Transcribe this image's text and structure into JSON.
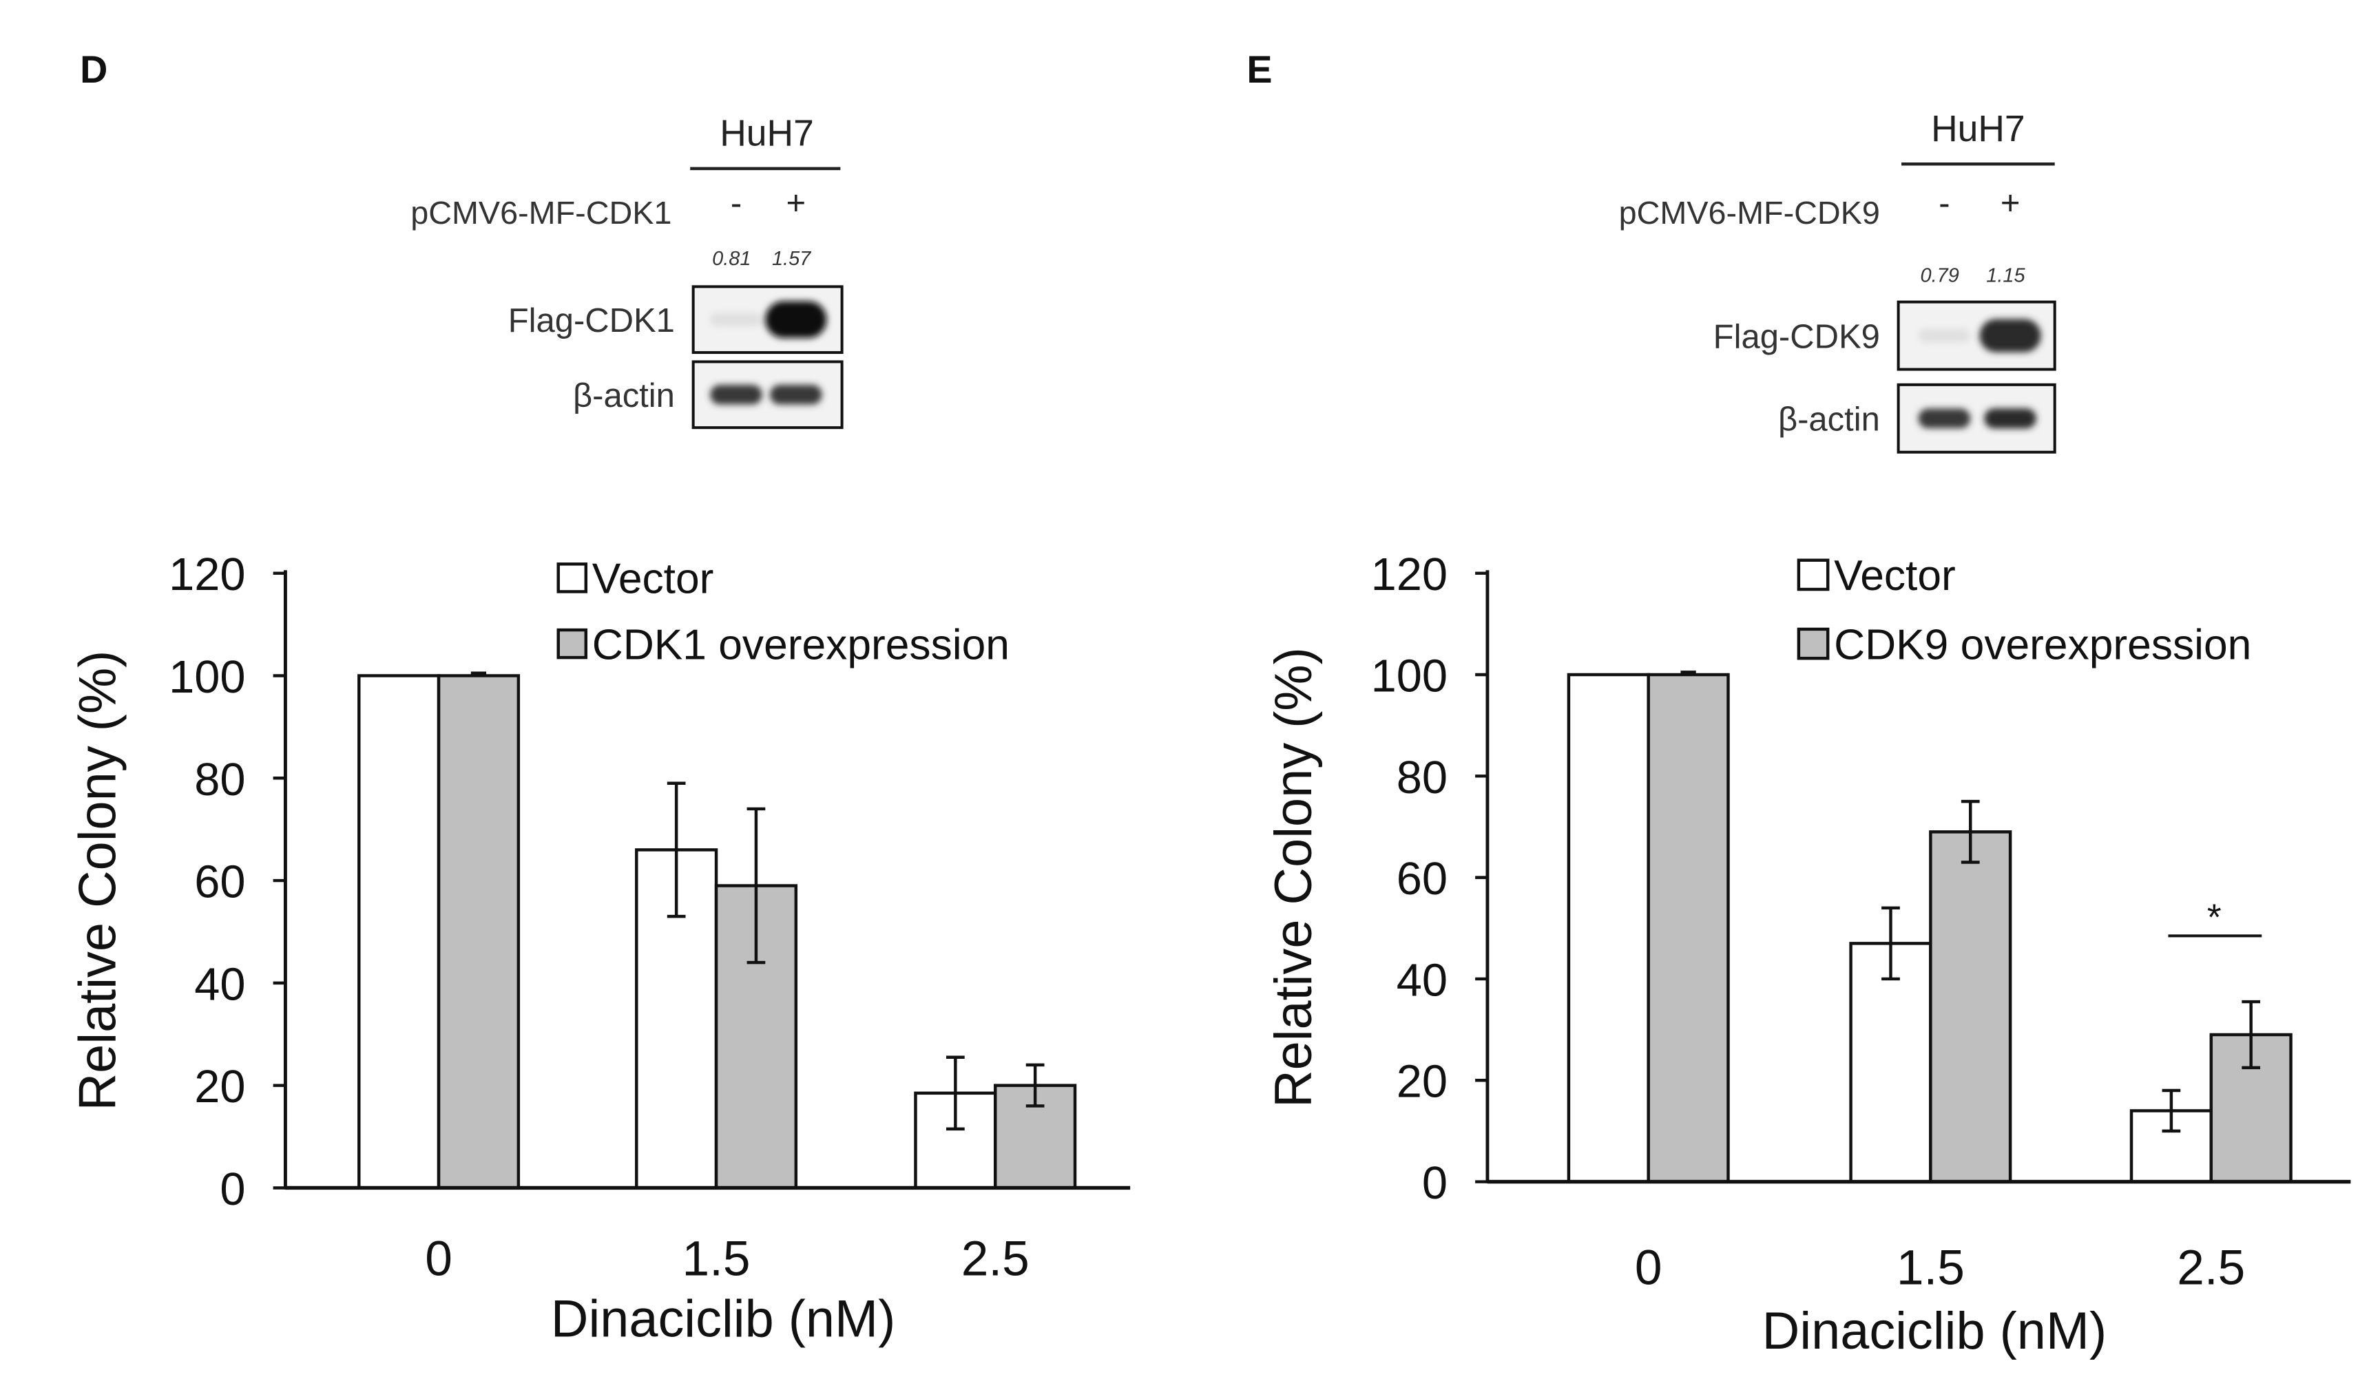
{
  "panels": [
    {
      "letter": "D",
      "blot": {
        "cell_line": "HuH7",
        "construct": "pCMV6-MF-CDK1",
        "lanes": [
          "-",
          "+"
        ],
        "quant": [
          "0.81",
          "1.57"
        ],
        "bands": [
          {
            "label": "Flag-CDK1",
            "intensity": [
              0.05,
              1.0
            ]
          },
          {
            "label": "β-actin",
            "intensity": [
              0.8,
              0.8
            ]
          }
        ]
      }
    },
    {
      "letter": "E",
      "blot": {
        "cell_line": "HuH7",
        "construct": "pCMV6-MF-CDK9",
        "lanes": [
          "-",
          "+"
        ],
        "quant": [
          "0.79",
          "1.15"
        ],
        "bands": [
          {
            "label": "Flag-CDK9",
            "intensity": [
              0.05,
              0.85
            ]
          },
          {
            "label": "β-actin",
            "intensity": [
              0.8,
              0.85
            ]
          }
        ]
      }
    }
  ],
  "chart_data": [
    {
      "type": "bar",
      "title": "",
      "categories": [
        "0",
        "1.5",
        "2.5"
      ],
      "xlabel": "Dinaciclib (nM)",
      "ylabel": "Relative Colony (%)",
      "ylim": [
        0,
        120
      ],
      "yticks": [
        0,
        20,
        40,
        60,
        80,
        100,
        120
      ],
      "legend": "top-right",
      "series": [
        {
          "name": "Vector",
          "color": "#ffffff",
          "values": [
            100,
            66,
            18.5
          ],
          "errors": [
            0,
            13,
            7
          ]
        },
        {
          "name": "CDK1 overexpression",
          "color": "#bfbfbf",
          "values": [
            100,
            59,
            20
          ],
          "errors": [
            0.5,
            15,
            4
          ]
        }
      ],
      "annotations": []
    },
    {
      "type": "bar",
      "title": "",
      "categories": [
        "0",
        "1.5",
        "2.5"
      ],
      "xlabel": "Dinaciclib (nM)",
      "ylabel": "Relative Colony (%)",
      "ylim": [
        0,
        120
      ],
      "yticks": [
        0,
        20,
        40,
        60,
        80,
        100,
        120
      ],
      "legend": "top-right",
      "series": [
        {
          "name": "Vector",
          "color": "#ffffff",
          "values": [
            100,
            47,
            14
          ],
          "errors": [
            0,
            7,
            4
          ]
        },
        {
          "name": "CDK9 overexpression",
          "color": "#bfbfbf",
          "values": [
            100,
            69,
            29
          ],
          "errors": [
            0.5,
            6,
            6.5
          ]
        }
      ],
      "annotations": [
        {
          "category": "2.5",
          "text": "*",
          "type": "significance"
        }
      ]
    }
  ]
}
